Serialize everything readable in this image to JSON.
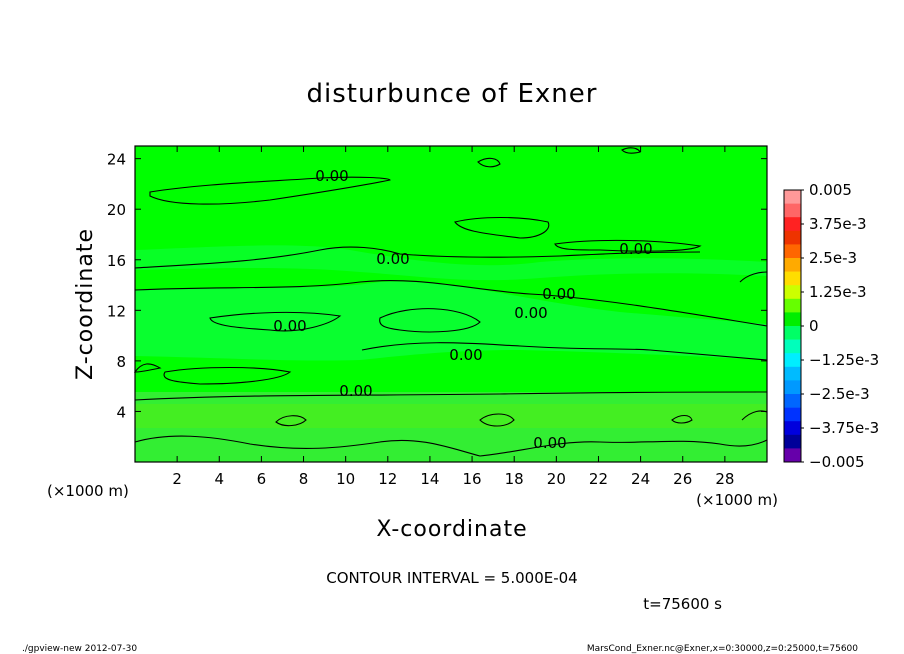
{
  "chart_data": {
    "type": "heatmap",
    "title": "disturbunce of Exner",
    "xlabel": "X-coordinate",
    "ylabel": "Z-coordinate",
    "x_unit": "(×1000 m)",
    "y_unit": "(×1000 m)",
    "xlim": [
      0,
      30
    ],
    "ylim": [
      0,
      25
    ],
    "x_ticks": [
      "2",
      "4",
      "6",
      "8",
      "10",
      "12",
      "14",
      "16",
      "18",
      "20",
      "22",
      "24",
      "26",
      "28"
    ],
    "y_ticks": [
      "4",
      "8",
      "12",
      "16",
      "20",
      "24"
    ],
    "colorbar": {
      "labels": [
        "0.005",
        "3.75e-3",
        "2.5e-3",
        "1.25e-3",
        "0",
        "−1.25e-3",
        "−2.5e-3",
        "−3.75e-3",
        "−0.005"
      ],
      "range": [
        -0.005,
        0.005
      ],
      "colors": [
        "#ff9999",
        "#ff6666",
        "#ff2222",
        "#ee3300",
        "#ff6600",
        "#ffaa00",
        "#ffdd00",
        "#ccff00",
        "#66ff00",
        "#00ee00",
        "#00ff66",
        "#00ffbb",
        "#00eeff",
        "#00bbff",
        "#0099ff",
        "#0066ff",
        "#0033ff",
        "#0000dd",
        "#000099",
        "#6600aa"
      ]
    },
    "contour_interval_text": "CONTOUR INTERVAL = 5.000E-04",
    "contour_label": "0.00",
    "time_text": "t=75600 s",
    "field_colors": {
      "dominant": "#00ff00",
      "low_layer": "#33ee33",
      "band": "#11ff55"
    }
  },
  "footer": {
    "left": "./gpview-new  2012-07-30",
    "right": "MarsCond_Exner.nc@Exner,x=0:30000,z=0:25000,t=75600"
  }
}
